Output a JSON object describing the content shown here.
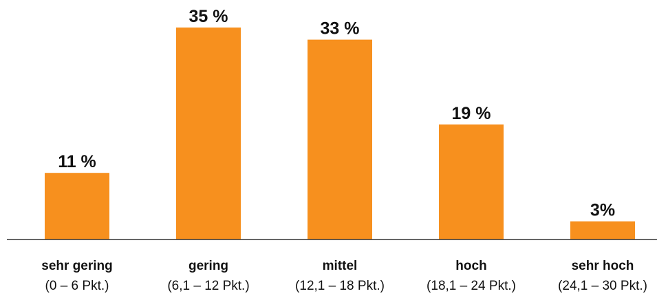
{
  "chart_data": {
    "type": "bar",
    "categories": [
      "sehr gering",
      "gering",
      "mittel",
      "hoch",
      "sehr hoch"
    ],
    "category_ranges": [
      "(0 – 6 Pkt.)",
      "(6,1 – 12 Pkt.)",
      "(12,1 – 18 Pkt.)",
      "(18,1 – 24 Pkt.)",
      "(24,1 – 30 Pkt.)"
    ],
    "values": [
      11,
      35,
      33,
      19,
      3
    ],
    "value_labels": [
      "11 %",
      "35 %",
      "33 %",
      "19 %",
      "3%"
    ],
    "unit": "%",
    "ylim": [
      0,
      35
    ],
    "grid": false,
    "legend": "none",
    "bar_color": "#f7901e",
    "axis_color": "#333333"
  }
}
